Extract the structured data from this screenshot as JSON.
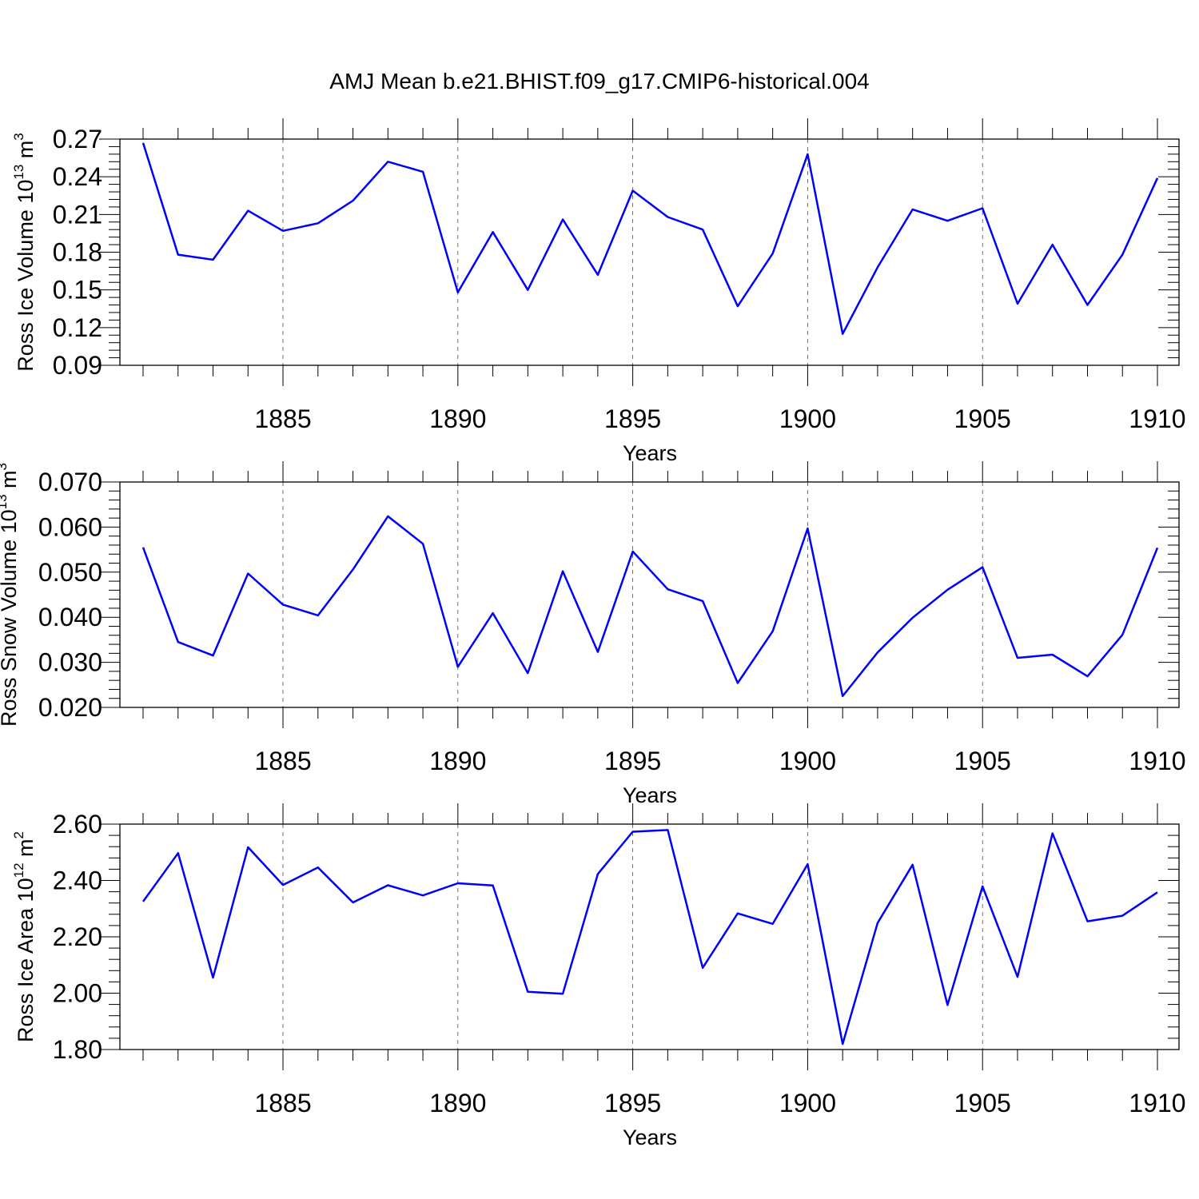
{
  "title": "AMJ Mean b.e21.BHIST.f09_g17.CMIP6-historical.004",
  "colors": {
    "line": "#0000ff",
    "axis": "#000000",
    "grid": "#000000"
  },
  "chart_data": [
    {
      "type": "line",
      "ylabel": {
        "text": "Ross Ice Volume 10",
        "exp": "13",
        "unit": " m",
        "unit_exp": "3"
      },
      "xlabel": "Years",
      "xlim": [
        1881,
        1910
      ],
      "ylim": [
        0.09,
        0.27
      ],
      "yticks": [
        "0.09",
        "0.12",
        "0.15",
        "0.18",
        "0.21",
        "0.24",
        "0.27"
      ],
      "xticks": [
        "1885",
        "1890",
        "1895",
        "1900",
        "1905",
        "1910"
      ],
      "grid": "dashed vertical at major x ticks",
      "x": [
        1881,
        1882,
        1883,
        1884,
        1885,
        1886,
        1887,
        1888,
        1889,
        1890,
        1891,
        1892,
        1893,
        1894,
        1895,
        1896,
        1897,
        1898,
        1899,
        1900,
        1901,
        1902,
        1903,
        1904,
        1905,
        1906,
        1907,
        1908,
        1909,
        1910
      ],
      "series": [
        {
          "values": [
            0.267,
            0.178,
            0.174,
            0.213,
            0.197,
            0.203,
            0.221,
            0.252,
            0.244,
            0.148,
            0.196,
            0.15,
            0.206,
            0.162,
            0.229,
            0.208,
            0.198,
            0.137,
            0.179,
            0.258,
            0.115,
            0.168,
            0.214,
            0.205,
            0.215,
            0.139,
            0.186,
            0.138,
            0.178,
            0.239
          ]
        }
      ]
    },
    {
      "type": "line",
      "ylabel": {
        "text": "Ross Snow Volume 10",
        "exp": "13",
        "unit": " m",
        "unit_exp": "3"
      },
      "xlabel": "Years",
      "xlim": [
        1881,
        1910
      ],
      "ylim": [
        0.02,
        0.07
      ],
      "yticks": [
        "0.020",
        "0.030",
        "0.040",
        "0.050",
        "0.060",
        "0.070"
      ],
      "xticks": [
        "1885",
        "1890",
        "1895",
        "1900",
        "1905",
        "1910"
      ],
      "grid": "dashed vertical at major x ticks",
      "x": [
        1881,
        1882,
        1883,
        1884,
        1885,
        1886,
        1887,
        1888,
        1889,
        1890,
        1891,
        1892,
        1893,
        1894,
        1895,
        1896,
        1897,
        1898,
        1899,
        1900,
        1901,
        1902,
        1903,
        1904,
        1905,
        1906,
        1907,
        1908,
        1909,
        1910
      ],
      "series": [
        {
          "values": [
            0.0555,
            0.0345,
            0.0315,
            0.0497,
            0.0428,
            0.0404,
            0.0506,
            0.0624,
            0.0563,
            0.029,
            0.0409,
            0.0276,
            0.0502,
            0.0323,
            0.0546,
            0.0462,
            0.0436,
            0.0254,
            0.0369,
            0.0597,
            0.0225,
            0.0322,
            0.0399,
            0.0461,
            0.0511,
            0.031,
            0.0317,
            0.0269,
            0.0361,
            0.0554
          ]
        }
      ]
    },
    {
      "type": "line",
      "ylabel": {
        "text": "Ross Ice Area 10",
        "exp": "12",
        "unit": " m",
        "unit_exp": "2"
      },
      "xlabel": "Years",
      "xlim": [
        1881,
        1910
      ],
      "ylim": [
        1.8,
        2.6
      ],
      "yticks": [
        "1.80",
        "2.00",
        "2.20",
        "2.40",
        "2.60"
      ],
      "xticks": [
        "1885",
        "1890",
        "1895",
        "1900",
        "1905",
        "1910"
      ],
      "grid": "dashed vertical at major x ticks",
      "x": [
        1881,
        1882,
        1883,
        1884,
        1885,
        1886,
        1887,
        1888,
        1889,
        1890,
        1891,
        1892,
        1893,
        1894,
        1895,
        1896,
        1897,
        1898,
        1899,
        1900,
        1901,
        1902,
        1903,
        1904,
        1905,
        1906,
        1907,
        1908,
        1909,
        1910
      ],
      "series": [
        {
          "values": [
            2.325,
            2.497,
            2.055,
            2.518,
            2.384,
            2.446,
            2.322,
            2.383,
            2.347,
            2.39,
            2.382,
            2.005,
            1.998,
            2.423,
            2.573,
            2.579,
            2.09,
            2.283,
            2.246,
            2.458,
            1.82,
            2.249,
            2.456,
            1.958,
            2.379,
            2.058,
            2.567,
            2.255,
            2.275,
            2.358
          ]
        }
      ]
    }
  ]
}
